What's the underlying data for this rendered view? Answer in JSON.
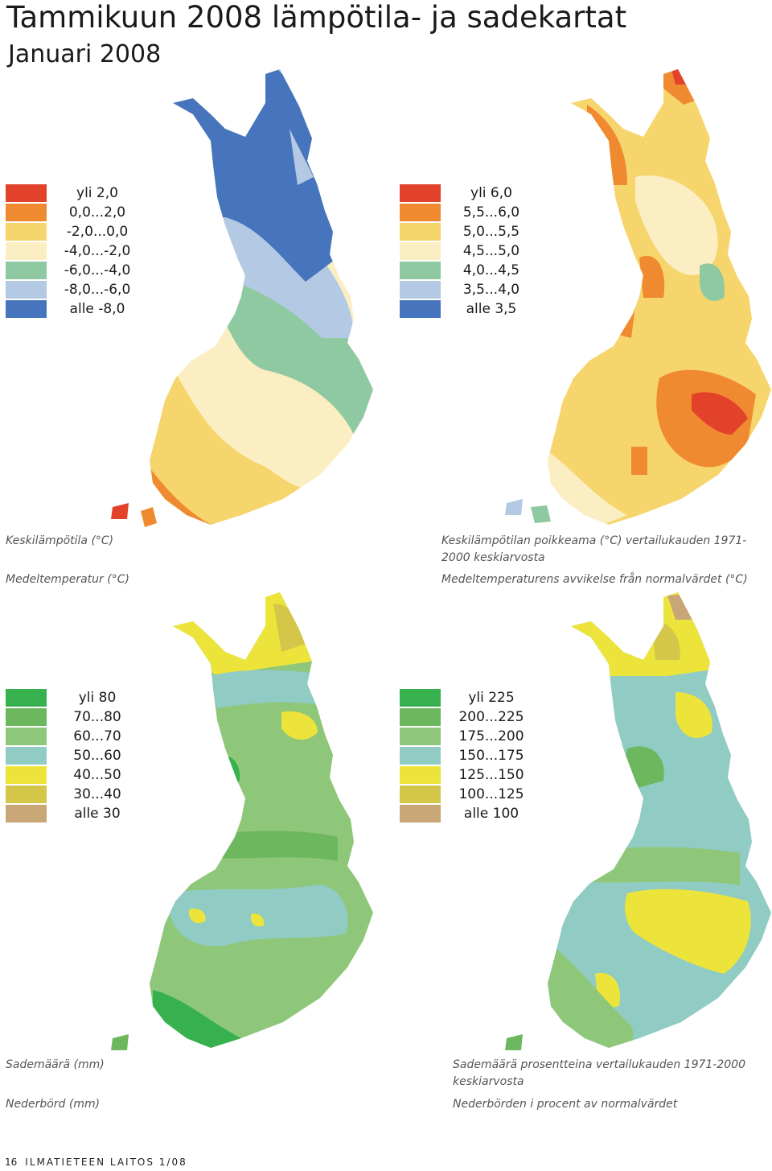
{
  "page": {
    "title": "Tammikuun  2008 lämpötila- ja sadekartat",
    "subtitle": "Januari 2008",
    "footer_page": "16",
    "footer_text": "ILMATIETEEN LAITOS 1/08"
  },
  "panels": [
    {
      "caption_fi": "Keskilämpötila (°C)",
      "caption_sv": "Medeltemperatur (°C)",
      "legend": [
        {
          "label": "yli 2,0",
          "color": "#e2412a"
        },
        {
          "label": "0,0...2,0",
          "color": "#f08a30"
        },
        {
          "label": "-2,0...0,0",
          "color": "#f6d56c"
        },
        {
          "label": "-4,0...-2,0",
          "color": "#fbeec3"
        },
        {
          "label": "-6,0...-4,0",
          "color": "#8fc9a1"
        },
        {
          "label": "-8,0...-6,0",
          "color": "#b3c9e4"
        },
        {
          "label": "alle -8,0",
          "color": "#4675bd"
        }
      ]
    },
    {
      "caption_fi": "Keskilämpötilan poikkeama (°C) vertailukauden 1971-2000 keskiarvosta",
      "caption_sv": "Medeltemperaturens avvikelse från normalvärdet (°C)",
      "legend": [
        {
          "label": "yli 6,0",
          "color": "#e2412a"
        },
        {
          "label": "5,5...6,0",
          "color": "#f08a30"
        },
        {
          "label": "5,0...5,5",
          "color": "#f6d56c"
        },
        {
          "label": "4,5...5,0",
          "color": "#fbeec3"
        },
        {
          "label": "4,0...4,5",
          "color": "#8fc9a1"
        },
        {
          "label": "3,5...4,0",
          "color": "#b3c9e4"
        },
        {
          "label": "alle 3,5",
          "color": "#4675bd"
        }
      ]
    },
    {
      "caption_fi": "Sademäärä (mm)",
      "caption_sv": "Nederbörd (mm)",
      "legend": [
        {
          "label": "yli 80",
          "color": "#36b14e"
        },
        {
          "label": "70...80",
          "color": "#6db85f"
        },
        {
          "label": "60...70",
          "color": "#8fc77a"
        },
        {
          "label": "50...60",
          "color": "#90ccc4"
        },
        {
          "label": "40...50",
          "color": "#ece43a"
        },
        {
          "label": "30...40",
          "color": "#d4c648"
        },
        {
          "label": "alle 30",
          "color": "#c9a676"
        }
      ]
    },
    {
      "caption_fi": "Sademäärä prosentteina vertailukauden 1971-2000 keskiarvosta",
      "caption_sv": "Nederbörden i procent av normalvärdet",
      "legend": [
        {
          "label": "yli 225",
          "color": "#36b14e"
        },
        {
          "label": "200...225",
          "color": "#6db85f"
        },
        {
          "label": "175...200",
          "color": "#8fc77a"
        },
        {
          "label": "150...175",
          "color": "#90ccc4"
        },
        {
          "label": "125...150",
          "color": "#ece43a"
        },
        {
          "label": "100...125",
          "color": "#d4c648"
        },
        {
          "label": "alle 100",
          "color": "#c9a676"
        }
      ]
    }
  ]
}
